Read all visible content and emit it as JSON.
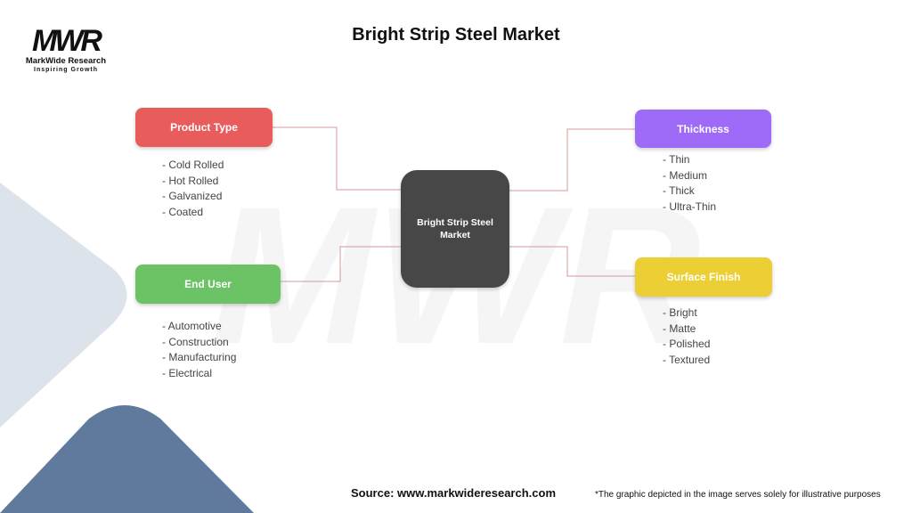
{
  "title": "Bright Strip Steel Market",
  "logo": {
    "mark": "MWR",
    "name": "MarkWide Research",
    "tagline": "Inspiring Growth"
  },
  "center": {
    "label": "Bright Strip Steel Market",
    "color": "#474747"
  },
  "categories": [
    {
      "label": "Product Type",
      "color": "#E85C5C",
      "items": [
        "- Cold Rolled",
        "- Hot Rolled",
        "- Galvanized",
        "- Coated"
      ]
    },
    {
      "label": "End User",
      "color": "#6CC366",
      "items": [
        "- Automotive",
        "- Construction",
        "- Manufacturing",
        "- Electrical"
      ]
    },
    {
      "label": "Thickness",
      "color": "#9D6BF7",
      "items": [
        "- Thin",
        "- Medium",
        "- Thick",
        "- Ultra-Thin"
      ]
    },
    {
      "label": "Surface Finish",
      "color": "#EBCF35",
      "items": [
        "- Bright",
        "- Matte",
        "- Polished",
        "- Textured"
      ]
    }
  ],
  "connector_color": "#D49A9A",
  "footer": {
    "source": "Source: www.markwideresearch.com",
    "note": "*The graphic depicted in the image serves solely for illustrative purposes"
  }
}
